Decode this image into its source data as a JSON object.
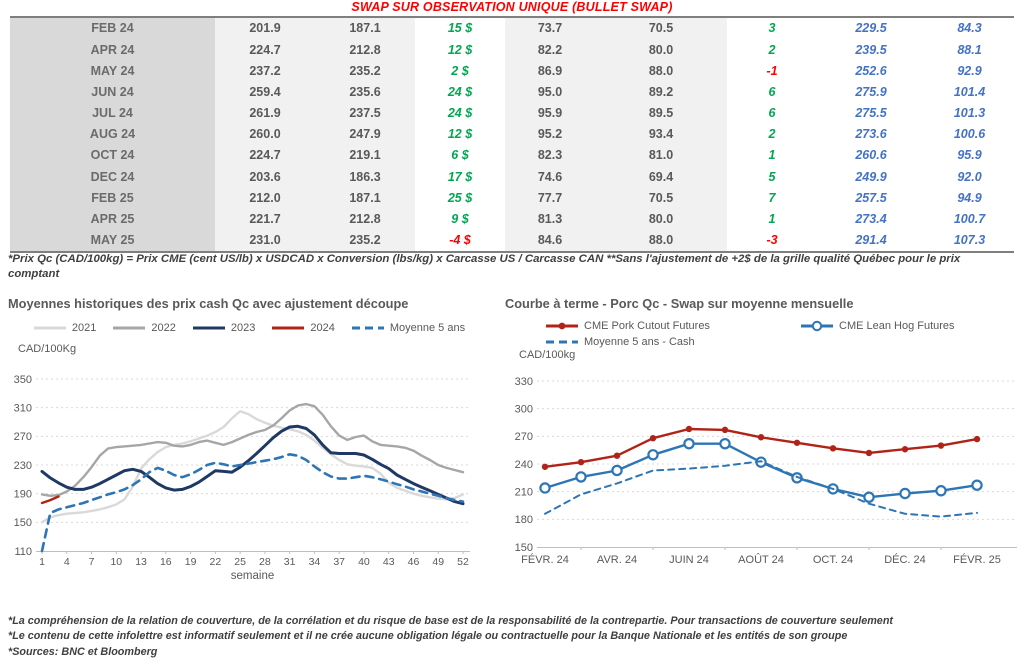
{
  "page": {
    "title": "SWAP SUR OBSERVATION UNIQUE (BULLET SWAP)",
    "title_color": "#ff0000",
    "footnote_top": "*Prix Qc (CAD/100kg) = Prix CME (cent US/lb) x USDCAD x Conversion (lbs/kg) x Carcasse US / Carcasse CAN **Sans l'ajustement de +2$ de la grille qualité Québec pour le prix comptant",
    "footnotes_bottom": [
      "*La compréhension de la relation de couverture, de la corrélation et du risque de base est de la responsabilité de la contrepartie. Pour transactions de couverture seulement",
      "*Le contenu de cette infolettre est informatif seulement et il ne crée aucune obligation légale ou contractuelle pour la Banque Nationale et les entités de son groupe",
      "*Sources: BNC et Bloomberg"
    ]
  },
  "table": {
    "colors": {
      "positive": "#00a650",
      "negative": "#ff0000",
      "forward": "#4472c4",
      "text": "#595959"
    },
    "rows": [
      {
        "month": "FEB 24",
        "cells": [
          "201.9",
          "187.1",
          "15 $",
          "73.7",
          "70.5",
          "3",
          "229.5",
          "84.3"
        ]
      },
      {
        "month": "APR 24",
        "cells": [
          "224.7",
          "212.8",
          "12 $",
          "82.2",
          "80.0",
          "2",
          "239.5",
          "88.1"
        ]
      },
      {
        "month": "MAY 24",
        "cells": [
          "237.2",
          "235.2",
          "2 $",
          "86.9",
          "88.0",
          "-1",
          "252.6",
          "92.9"
        ]
      },
      {
        "month": "JUN 24",
        "cells": [
          "259.4",
          "235.6",
          "24 $",
          "95.0",
          "89.2",
          "6",
          "275.9",
          "101.4"
        ]
      },
      {
        "month": "JUL 24",
        "cells": [
          "261.9",
          "237.5",
          "24 $",
          "95.9",
          "89.5",
          "6",
          "275.5",
          "101.3"
        ]
      },
      {
        "month": "AUG 24",
        "cells": [
          "260.0",
          "247.9",
          "12 $",
          "95.2",
          "93.4",
          "2",
          "273.6",
          "100.6"
        ]
      },
      {
        "month": "OCT 24",
        "cells": [
          "224.7",
          "219.1",
          "6 $",
          "82.3",
          "81.0",
          "1",
          "260.6",
          "95.9"
        ]
      },
      {
        "month": "DEC 24",
        "cells": [
          "203.6",
          "186.3",
          "17 $",
          "74.6",
          "69.4",
          "5",
          "249.9",
          "92.0"
        ]
      },
      {
        "month": "FEB 25",
        "cells": [
          "212.0",
          "187.1",
          "25 $",
          "77.7",
          "70.5",
          "7",
          "257.5",
          "94.9"
        ]
      },
      {
        "month": "APR 25",
        "cells": [
          "221.7",
          "212.8",
          "9 $",
          "81.3",
          "80.0",
          "1",
          "273.4",
          "100.7"
        ]
      },
      {
        "month": "MAY 25",
        "cells": [
          "231.0",
          "235.2",
          "-4 $",
          "84.6",
          "88.0",
          "-3",
          "291.4",
          "107.3"
        ]
      }
    ]
  },
  "chart_data": [
    {
      "type": "line",
      "title": "Moyennes historiques des prix cash Qc avec ajustement découpe",
      "ylabel": "CAD/100Kg",
      "xlabel": "semaine",
      "ylim": [
        110,
        350
      ],
      "yticks": [
        110,
        150,
        190,
        230,
        270,
        310,
        350
      ],
      "xticks": [
        1,
        4,
        7,
        10,
        13,
        16,
        19,
        22,
        25,
        28,
        31,
        34,
        37,
        40,
        43,
        46,
        49,
        52
      ],
      "x_range": [
        1,
        52
      ],
      "grid": "horizontal-dashed",
      "legend_position": "top",
      "series": [
        {
          "name": "2021",
          "color": "#d9d9d9",
          "dash": "",
          "marker": "",
          "values": [
            150,
            157,
            160,
            162,
            163,
            164,
            166,
            168,
            171,
            175,
            182,
            200,
            225,
            238,
            248,
            255,
            258,
            260,
            263,
            267,
            271,
            276,
            283,
            295,
            305,
            301,
            294,
            289,
            285,
            282,
            280,
            277,
            272,
            264,
            254,
            245,
            237,
            231,
            229,
            228,
            226,
            218,
            205,
            198,
            194,
            190,
            187,
            185,
            183,
            182,
            184,
            189
          ]
        },
        {
          "name": "2022",
          "color": "#a6a6a6",
          "dash": "",
          "marker": "",
          "values": [
            189,
            187,
            188,
            193,
            201,
            213,
            227,
            243,
            253,
            255,
            256,
            257,
            258,
            260,
            262,
            261,
            257,
            256,
            258,
            262,
            264,
            261,
            258,
            262,
            267,
            272,
            276,
            279,
            285,
            295,
            306,
            313,
            315,
            312,
            300,
            284,
            271,
            265,
            269,
            271,
            263,
            258,
            257,
            256,
            254,
            250,
            243,
            237,
            230,
            226,
            223,
            220
          ]
        },
        {
          "name": "2023",
          "color": "#1f3864",
          "dash": "",
          "marker": "",
          "values": [
            221,
            212,
            205,
            199,
            196,
            196,
            199,
            204,
            210,
            216,
            222,
            224,
            221,
            213,
            204,
            198,
            195,
            196,
            200,
            206,
            214,
            222,
            221,
            220,
            227,
            236,
            246,
            257,
            268,
            277,
            283,
            284,
            281,
            272,
            258,
            247,
            246,
            246,
            246,
            244,
            238,
            231,
            225,
            216,
            210,
            204,
            199,
            194,
            189,
            184,
            179,
            176
          ]
        },
        {
          "name": "2024",
          "color": "#b02418",
          "dash": "",
          "marker": "",
          "values": [
            177,
            181,
            186
          ]
        },
        {
          "name": "Moyenne 5 ans",
          "color": "#2e75b6",
          "dash": "8,6",
          "marker": "",
          "values": [
            110,
            163,
            168,
            171,
            174,
            177,
            181,
            185,
            189,
            192,
            196,
            202,
            210,
            220,
            226,
            222,
            216,
            213,
            217,
            223,
            230,
            233,
            231,
            228,
            230,
            232,
            234,
            236,
            238,
            241,
            245,
            243,
            237,
            228,
            220,
            214,
            211,
            211,
            213,
            215,
            213,
            210,
            207,
            203,
            200,
            196,
            193,
            190,
            187,
            184,
            181,
            179
          ]
        }
      ]
    },
    {
      "type": "line",
      "title": "Courbe à terme - Porc Qc - Swap sur moyenne mensuelle",
      "ylabel": "CAD/100kg",
      "xlabel": "",
      "ylim": [
        150,
        330
      ],
      "yticks": [
        150,
        180,
        210,
        240,
        270,
        300,
        330
      ],
      "x_labels": [
        "FÉVR. 24",
        "AVR. 24",
        "JUIN 24",
        "AOÛT 24",
        "OCT. 24",
        "DÉC. 24",
        "FÉVR. 25"
      ],
      "label_every": 2,
      "n_points": 13,
      "grid": "horizontal-dashed",
      "legend_position": "top",
      "series": [
        {
          "name": "CME Pork Cutout Futures",
          "color": "#b02418",
          "dash": "",
          "marker": "dot",
          "values": [
            237,
            242,
            249,
            268,
            278,
            277,
            269,
            263,
            257,
            252,
            256,
            260,
            267
          ]
        },
        {
          "name": "CME Lean Hog Futures",
          "color": "#2e75b6",
          "dash": "",
          "marker": "circle",
          "values": [
            214,
            226,
            233,
            250,
            262,
            262,
            242,
            225,
            213,
            204,
            208,
            211,
            217
          ]
        },
        {
          "name": "Moyenne 5 ans - Cash",
          "color": "#2e75b6",
          "dash": "6,5",
          "marker": "",
          "values": [
            186,
            207,
            219,
            233,
            235,
            238,
            243,
            226,
            213,
            197,
            186,
            183,
            187
          ]
        }
      ]
    }
  ]
}
